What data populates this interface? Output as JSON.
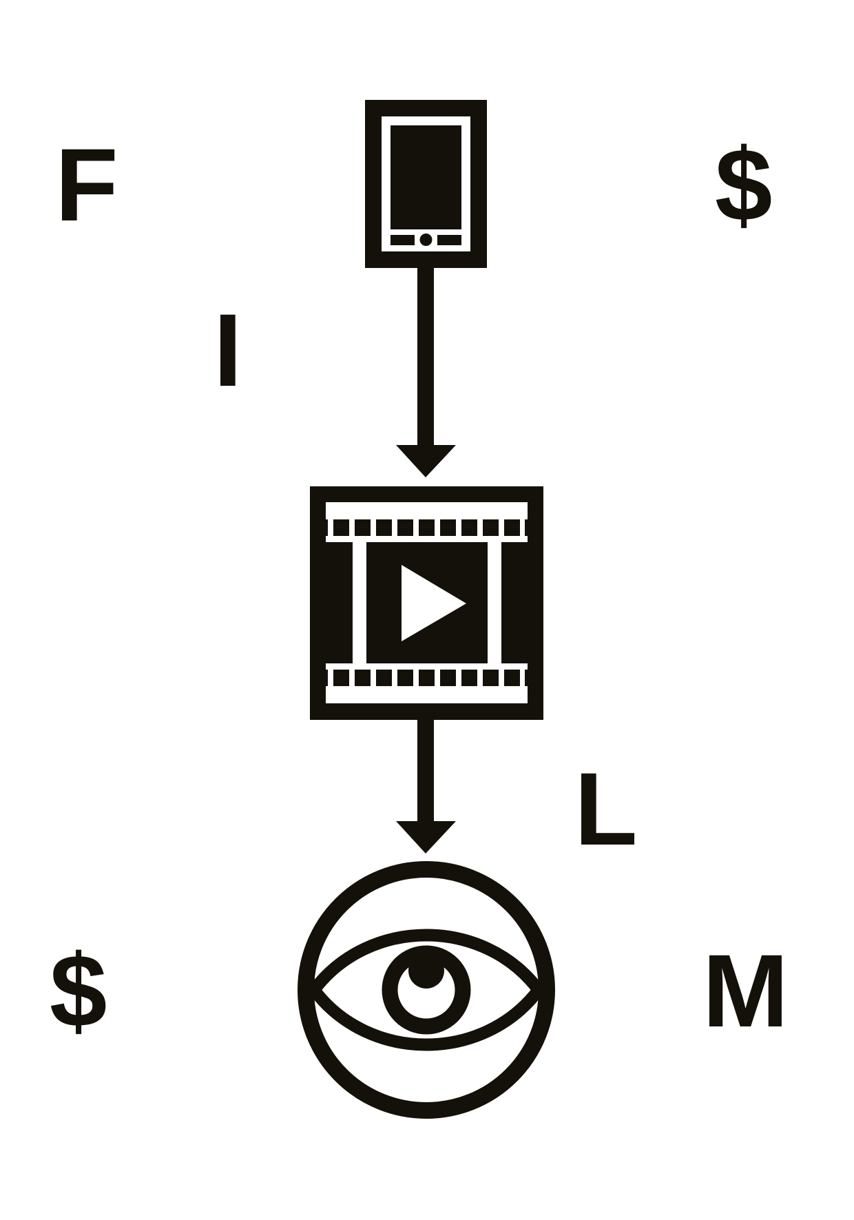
{
  "letters": {
    "f": "F",
    "i": "I",
    "l": "L",
    "m": "M",
    "dollar_top": "$",
    "dollar_bottom": "$"
  },
  "icons": {
    "top": "tablet-device-icon",
    "middle": "film-strip-play-icon",
    "bottom": "eye-in-circle-icon",
    "connectors": "down-arrow-icon"
  },
  "colors": {
    "ink": "#14100a",
    "paper": "#ffffff"
  }
}
